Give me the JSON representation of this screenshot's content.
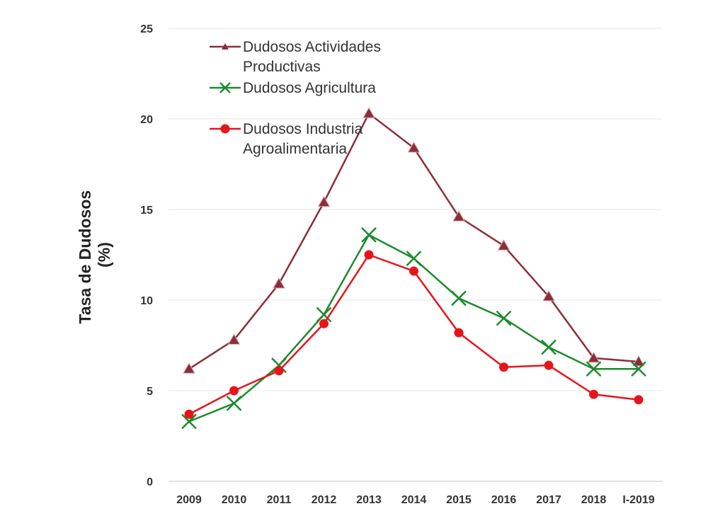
{
  "chart_data": {
    "type": "line",
    "title": "",
    "xlabel": "",
    "ylabel": [
      "Tasa de Dudosos",
      "(%)"
    ],
    "ylim": [
      0,
      25
    ],
    "yticks": [
      "0",
      "5",
      "10",
      "15",
      "20",
      "25"
    ],
    "grid": true,
    "legend_position": "top-left",
    "categories": [
      "2009",
      "2010",
      "2011",
      "2012",
      "2013",
      "2014",
      "2015",
      "2016",
      "2017",
      "2018",
      "I-2019"
    ],
    "series": [
      {
        "name": "Dudosos Actividades Productivas",
        "legend_lines": [
          "Dudosos Actividades",
          "Productivas"
        ],
        "marker": "triangle",
        "color": "#8B2E3A",
        "values": [
          6.2,
          7.8,
          10.9,
          15.4,
          20.3,
          18.4,
          14.6,
          13.0,
          10.2,
          6.8,
          6.6
        ]
      },
      {
        "name": "Dudosos Agricultura",
        "legend_lines": [
          "Dudosos Agricultura"
        ],
        "marker": "x",
        "color": "#1E8A2E",
        "values": [
          3.3,
          4.3,
          6.4,
          9.2,
          13.6,
          12.3,
          10.1,
          9.0,
          7.4,
          6.2,
          6.2
        ]
      },
      {
        "name": "Dudosos Industria Agroalimentaria",
        "legend_lines": [
          "Dudosos Industria",
          "Agroalimentaria"
        ],
        "marker": "circle",
        "color": "#E8141C",
        "values": [
          3.7,
          5.0,
          6.1,
          8.7,
          12.5,
          11.6,
          8.2,
          6.3,
          6.4,
          4.8,
          4.5
        ]
      }
    ]
  }
}
